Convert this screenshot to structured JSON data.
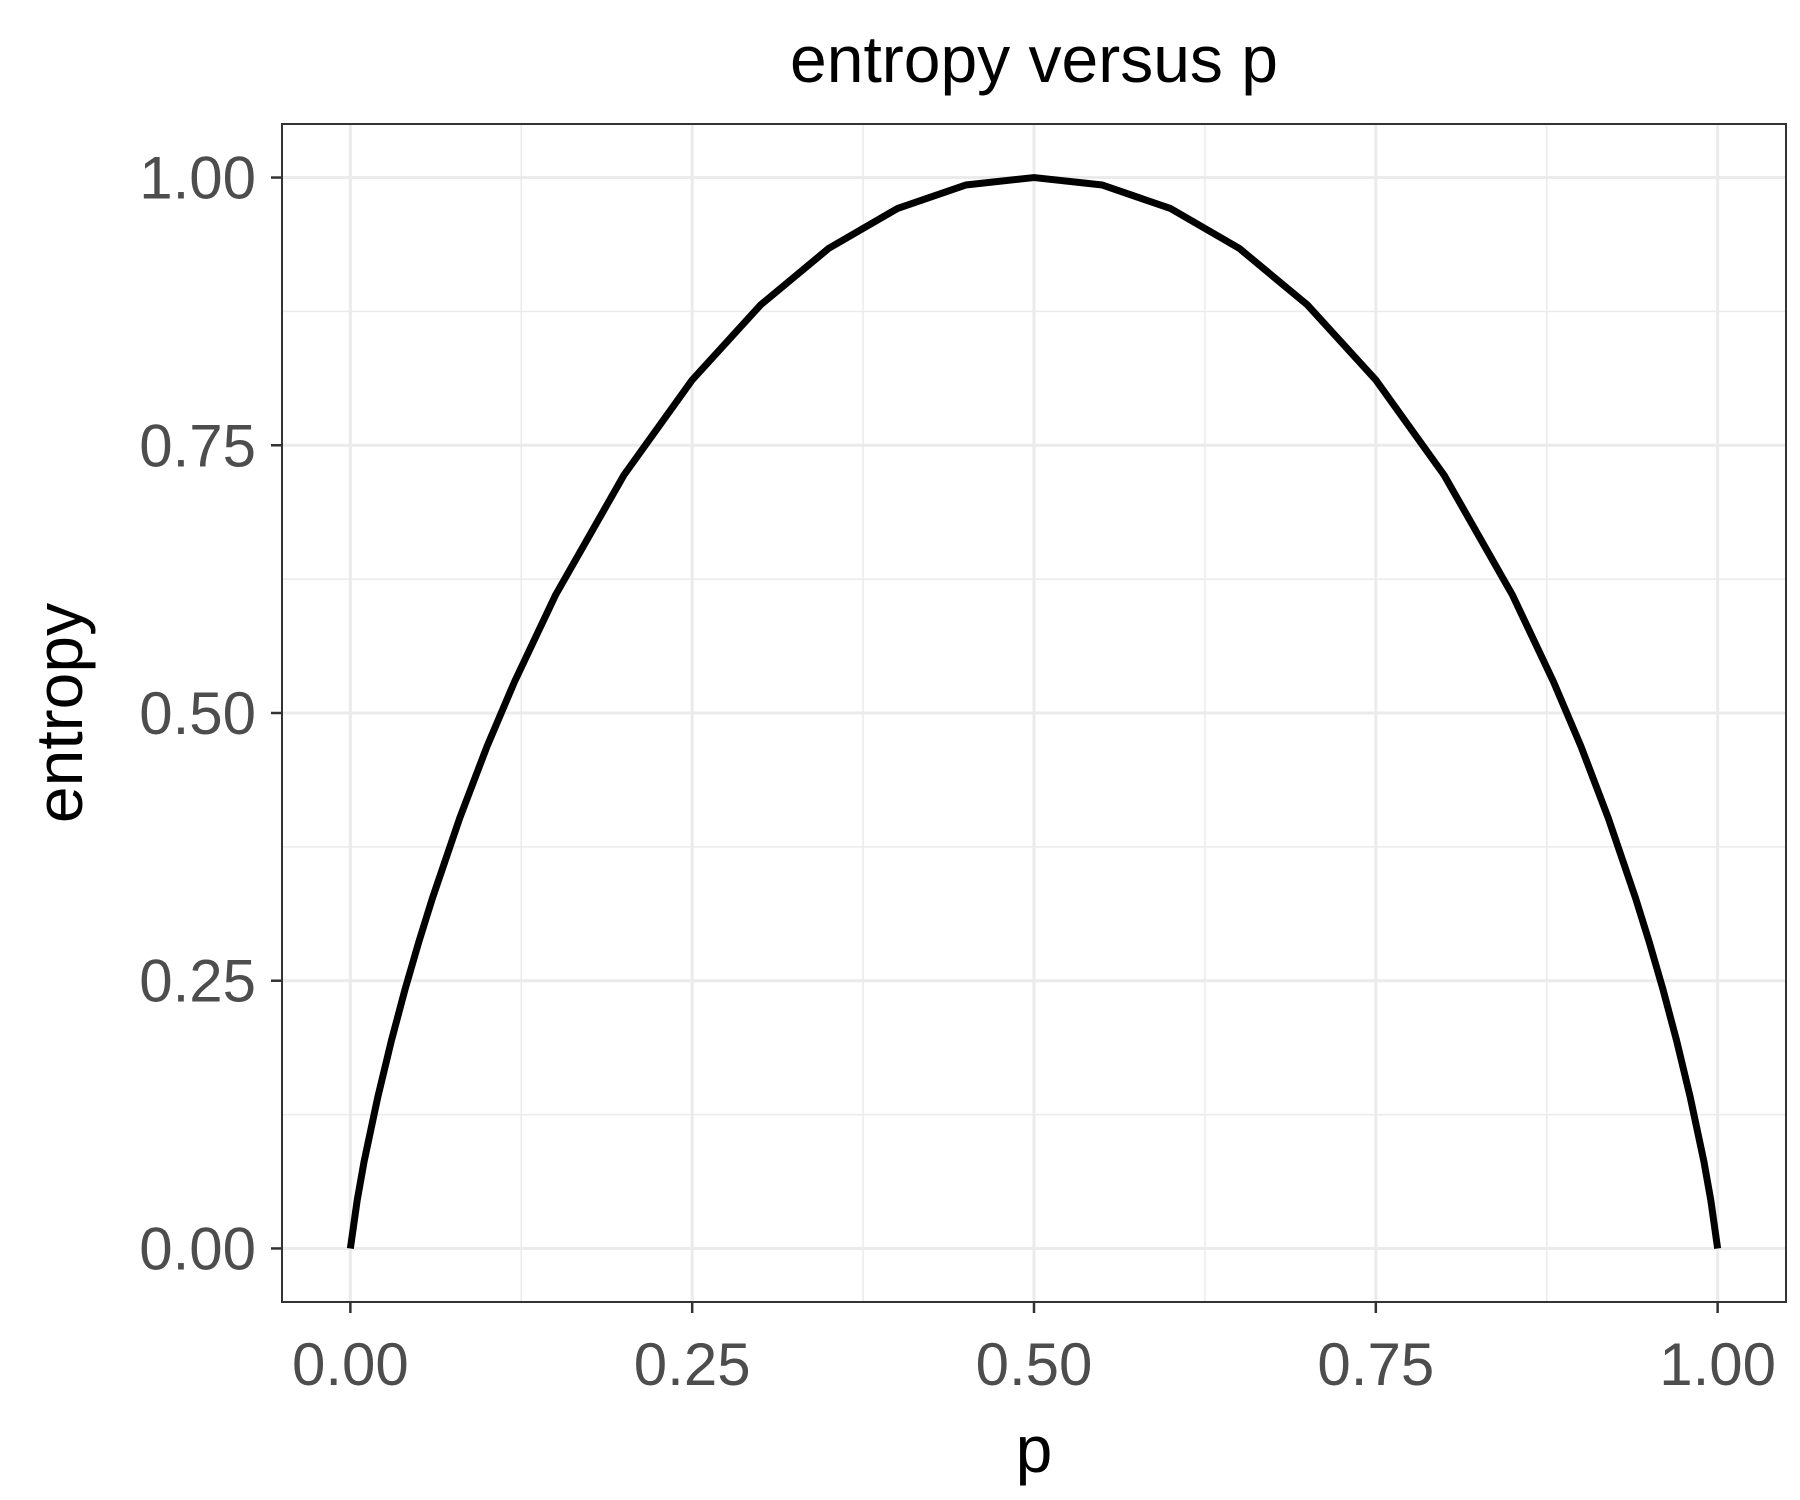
{
  "chart_data": {
    "type": "line",
    "title": "entropy versus p",
    "xlabel": "p",
    "ylabel": "entropy",
    "xlim": [
      -0.05,
      1.05
    ],
    "ylim": [
      -0.05,
      1.05
    ],
    "x_ticks": [
      0,
      0.25,
      0.5,
      0.75,
      1
    ],
    "x_tick_labels": [
      "0.00",
      "0.25",
      "0.50",
      "0.75",
      "1.00"
    ],
    "y_ticks": [
      0,
      0.25,
      0.5,
      0.75,
      1
    ],
    "y_tick_labels": [
      "0.00",
      "0.25",
      "0.50",
      "0.75",
      "1.00"
    ],
    "grid": true,
    "legend": "none",
    "series": [
      {
        "color": "#000000",
        "x": [
          0,
          0.005,
          0.01,
          0.02,
          0.03,
          0.04,
          0.05,
          0.06,
          0.08,
          0.1,
          0.12,
          0.15,
          0.2,
          0.25,
          0.3,
          0.35,
          0.4,
          0.45,
          0.5,
          0.55,
          0.6,
          0.65,
          0.7,
          0.75,
          0.8,
          0.85,
          0.88,
          0.9,
          0.92,
          0.94,
          0.95,
          0.96,
          0.97,
          0.98,
          0.99,
          0.995,
          1
        ],
        "y": [
          0,
          0.045,
          0.081,
          0.141,
          0.194,
          0.242,
          0.286,
          0.327,
          0.402,
          0.469,
          0.529,
          0.61,
          0.722,
          0.811,
          0.881,
          0.934,
          0.971,
          0.993,
          1.0,
          0.993,
          0.971,
          0.934,
          0.881,
          0.811,
          0.722,
          0.61,
          0.529,
          0.469,
          0.402,
          0.327,
          0.286,
          0.242,
          0.194,
          0.141,
          0.081,
          0.045,
          0
        ]
      }
    ]
  },
  "colors": {
    "background": "#ffffff",
    "grid": "#ebebeb",
    "panel_border": "#333333",
    "tick_label": "#4d4d4d",
    "line": "#000000"
  }
}
